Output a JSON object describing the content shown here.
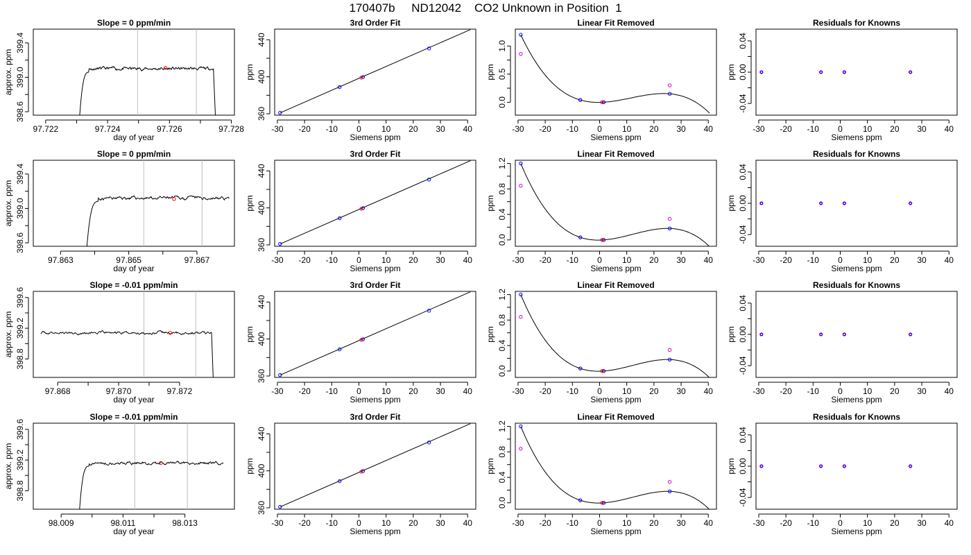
{
  "title": "170407b     ND12042    CO2 Unknown in Position  1",
  "colors": {
    "trace": "#000000",
    "marker_red": "#ff0000",
    "known_blue": "#0000ff",
    "unknown_magenta": "#cc00cc",
    "refline": "#bebebe",
    "axis": "#000000"
  },
  "chart_data": [
    {
      "type": "line",
      "title": "Slope =  0  ppm/min",
      "xlabel": "day of year",
      "ylabel": "approx. ppm",
      "xlim": [
        97.7216,
        97.7281
      ],
      "ylim": [
        398.56,
        399.56
      ],
      "x_ticks": [
        "97.722",
        "97.724",
        "97.726",
        "97.728"
      ],
      "x_tick_values": [
        97.722,
        97.724,
        97.726,
        97.728
      ],
      "y_ticks": [
        "398.6",
        "399.0",
        "399.4"
      ],
      "y_tick_values": [
        398.6,
        399.0,
        399.4
      ],
      "trace": {
        "start": 97.72305,
        "plateau_start": 97.7234,
        "end": 97.72742,
        "drop_end": 97.72752,
        "level": 399.1,
        "ripple": 0.025,
        "seed": 11
      },
      "vlines": [
        97.72497,
        97.72687
      ],
      "marker": {
        "x": 97.72587,
        "y": 399.11
      }
    },
    {
      "type": "scatter",
      "title": "3rd Order Fit",
      "xlabel": "Siemens ppm",
      "ylabel": "ppm",
      "xlim": [
        -31,
        43
      ],
      "ylim": [
        358.5,
        451.5
      ],
      "x_ticks": [
        "-30",
        "-20",
        "-10",
        "0",
        "10",
        "20",
        "30",
        "40"
      ],
      "x_tick_values": [
        -30,
        -20,
        -10,
        0,
        10,
        20,
        30,
        40
      ],
      "y_ticks": [
        "360",
        "400",
        "440"
      ],
      "y_tick_values": [
        360,
        400,
        440
      ],
      "fit_line": {
        "x": [
          -29,
          41
        ],
        "y": [
          361,
          451
        ]
      },
      "knowns": {
        "x": [
          -29,
          -7.1,
          1.5,
          25.8
        ],
        "y": [
          361.1,
          388.8,
          399.7,
          430.6
        ]
      },
      "unknown": {
        "x": 0.9,
        "y": 399.1
      }
    },
    {
      "type": "line",
      "title": "Linear Fit Removed",
      "xlabel": "Siemens ppm",
      "ylabel": "ppm",
      "xlim": [
        -31,
        43
      ],
      "ylim": [
        -0.23,
        1.3
      ],
      "x_ticks": [
        "-30",
        "-20",
        "-10",
        "0",
        "10",
        "20",
        "30",
        "40"
      ],
      "x_tick_values": [
        -30,
        -20,
        -10,
        0,
        10,
        20,
        30,
        40
      ],
      "y_ticks": [
        "0.0",
        "0.5",
        "1.0"
      ],
      "y_tick_values": [
        0,
        0.5,
        1.0
      ],
      "curve_points": [
        [
          -29,
          1.2
        ],
        [
          -7.1,
          0.04
        ],
        [
          1.5,
          0.0
        ],
        [
          25.8,
          0.15
        ]
      ],
      "curve_range": [
        -29,
        40.5
      ],
      "knowns": {
        "x": [
          -29,
          -7.1,
          1.5,
          25.8
        ],
        "y": [
          1.2,
          0.04,
          0.0,
          0.15
        ]
      },
      "uncorrected": {
        "x": [
          -29,
          -7.1,
          1.5,
          25.8
        ],
        "y": [
          0.86,
          0.04,
          0.0,
          0.3
        ]
      },
      "unknown": {
        "x": 0.9,
        "y": 0.0
      }
    },
    {
      "type": "scatter",
      "title": "Residuals for Knowns",
      "xlabel": "Siemens ppm",
      "ylabel": "ppm",
      "xlim": [
        -31,
        43
      ],
      "ylim": [
        -0.055,
        0.055
      ],
      "x_ticks": [
        "-30",
        "-20",
        "-10",
        "0",
        "10",
        "20",
        "30",
        "40"
      ],
      "x_tick_values": [
        -30,
        -20,
        -10,
        0,
        10,
        20,
        30,
        40
      ],
      "y_ticks": [
        "-0.04",
        "0.00",
        "0.04"
      ],
      "y_tick_values": [
        -0.04,
        0,
        0.04
      ],
      "points": {
        "x": [
          -29,
          -7.1,
          1.5,
          25.8
        ],
        "y": [
          0,
          0,
          0,
          0
        ]
      }
    },
    {
      "type": "line",
      "title": "Slope =  0  ppm/min",
      "xlabel": "day of year",
      "ylabel": "approx. ppm",
      "xlim": [
        97.8622,
        97.8681
      ],
      "ylim": [
        398.56,
        399.56
      ],
      "x_ticks": [
        "97.863",
        "97.865",
        "97.867"
      ],
      "x_tick_values": [
        97.863,
        97.865,
        97.867
      ],
      "y_ticks": [
        "398.6",
        "399.0",
        "399.4"
      ],
      "y_tick_values": [
        398.6,
        399.0,
        399.4
      ],
      "trace": {
        "start": 97.86372,
        "plateau_start": 97.8641,
        "end": 97.86795,
        "drop_end": null,
        "level": 399.12,
        "ripple": 0.025,
        "seed": 23
      },
      "vlines": [
        97.86544,
        97.86715
      ],
      "marker": {
        "x": 97.86633,
        "y": 399.11
      }
    },
    {
      "type": "scatter",
      "title": "3rd Order Fit",
      "xlabel": "Siemens ppm",
      "ylabel": "ppm",
      "xlim": [
        -31,
        43
      ],
      "ylim": [
        358.5,
        451.5
      ],
      "x_ticks": [
        "-30",
        "-20",
        "-10",
        "0",
        "10",
        "20",
        "30",
        "40"
      ],
      "x_tick_values": [
        -30,
        -20,
        -10,
        0,
        10,
        20,
        30,
        40
      ],
      "y_ticks": [
        "360",
        "400",
        "440"
      ],
      "y_tick_values": [
        360,
        400,
        440
      ],
      "fit_line": {
        "x": [
          -29,
          41
        ],
        "y": [
          361,
          451
        ]
      },
      "knowns": {
        "x": [
          -29,
          -7.1,
          1.5,
          25.8
        ],
        "y": [
          361.1,
          388.8,
          399.7,
          430.6
        ]
      },
      "unknown": {
        "x": 0.9,
        "y": 399.1
      }
    },
    {
      "type": "line",
      "title": "Linear Fit Removed",
      "xlabel": "Siemens ppm",
      "ylabel": "ppm",
      "xlim": [
        -31,
        43
      ],
      "ylim": [
        -0.1,
        1.25
      ],
      "x_ticks": [
        "-30",
        "-20",
        "-10",
        "0",
        "10",
        "20",
        "30",
        "40"
      ],
      "x_tick_values": [
        -30,
        -20,
        -10,
        0,
        10,
        20,
        30,
        40
      ],
      "y_ticks": [
        "0.0",
        "0.4",
        "0.8",
        "1.2"
      ],
      "y_tick_values": [
        0,
        0.4,
        0.8,
        1.2
      ],
      "curve_points": [
        [
          -29,
          1.2
        ],
        [
          -7.1,
          0.04
        ],
        [
          1.5,
          0.0
        ],
        [
          25.8,
          0.18
        ]
      ],
      "curve_range": [
        -29,
        40.5
      ],
      "knowns": {
        "x": [
          -29,
          -7.1,
          1.5,
          25.8
        ],
        "y": [
          1.2,
          0.04,
          0.0,
          0.18
        ]
      },
      "uncorrected": {
        "x": [
          -29,
          -7.1,
          1.5,
          25.8
        ],
        "y": [
          0.85,
          0.04,
          0.0,
          0.33
        ]
      },
      "unknown": {
        "x": 0.9,
        "y": 0.0
      }
    },
    {
      "type": "scatter",
      "title": "Residuals for Knowns",
      "xlabel": "Siemens ppm",
      "ylabel": "ppm",
      "xlim": [
        -31,
        43
      ],
      "ylim": [
        -0.055,
        0.055
      ],
      "x_ticks": [
        "-30",
        "-20",
        "-10",
        "0",
        "10",
        "20",
        "30",
        "40"
      ],
      "x_tick_values": [
        -30,
        -20,
        -10,
        0,
        10,
        20,
        30,
        40
      ],
      "y_ticks": [
        "-0.04",
        "0.00",
        "0.04"
      ],
      "y_tick_values": [
        -0.04,
        0,
        0.04
      ],
      "points": {
        "x": [
          -29,
          -7.1,
          1.5,
          25.8
        ],
        "y": [
          0,
          0,
          0,
          0
        ]
      }
    },
    {
      "type": "line",
      "title": "Slope =  -0.01  ppm/min",
      "xlabel": "day of year",
      "ylabel": "approx. ppm",
      "xlim": [
        97.8672,
        97.8738
      ],
      "ylim": [
        398.56,
        399.68
      ],
      "x_ticks": [
        "97.868",
        "97.870",
        "97.872"
      ],
      "x_tick_values": [
        97.868,
        97.87,
        97.872
      ],
      "y_ticks": [
        "398.8",
        "399.2",
        "399.6"
      ],
      "y_tick_values": [
        398.8,
        399.2,
        399.6
      ],
      "trace": {
        "start": 97.86745,
        "plateau_start": 97.86745,
        "end": 97.87305,
        "drop_end": 97.87313,
        "level": 399.14,
        "ripple": 0.025,
        "seed": 37
      },
      "vlines": [
        97.87083,
        97.87253
      ],
      "marker": {
        "x": 97.87169,
        "y": 399.14
      }
    },
    {
      "type": "scatter",
      "title": "3rd Order Fit",
      "xlabel": "Siemens ppm",
      "ylabel": "ppm",
      "xlim": [
        -31,
        43
      ],
      "ylim": [
        358.5,
        451.5
      ],
      "x_ticks": [
        "-30",
        "-20",
        "-10",
        "0",
        "10",
        "20",
        "30",
        "40"
      ],
      "x_tick_values": [
        -30,
        -20,
        -10,
        0,
        10,
        20,
        30,
        40
      ],
      "y_ticks": [
        "360",
        "400",
        "440"
      ],
      "y_tick_values": [
        360,
        400,
        440
      ],
      "fit_line": {
        "x": [
          -29,
          41
        ],
        "y": [
          361,
          451
        ]
      },
      "knowns": {
        "x": [
          -29,
          -7.1,
          1.5,
          25.8
        ],
        "y": [
          361.1,
          388.8,
          399.7,
          430.6
        ]
      },
      "unknown": {
        "x": 0.9,
        "y": 399.1
      }
    },
    {
      "type": "line",
      "title": "Linear Fit Removed",
      "xlabel": "Siemens ppm",
      "ylabel": "ppm",
      "xlim": [
        -31,
        43
      ],
      "ylim": [
        -0.1,
        1.25
      ],
      "x_ticks": [
        "-30",
        "-20",
        "-10",
        "0",
        "10",
        "20",
        "30",
        "40"
      ],
      "x_tick_values": [
        -30,
        -20,
        -10,
        0,
        10,
        20,
        30,
        40
      ],
      "y_ticks": [
        "0.0",
        "0.4",
        "0.8",
        "1.2"
      ],
      "y_tick_values": [
        0,
        0.4,
        0.8,
        1.2
      ],
      "curve_points": [
        [
          -29,
          1.2
        ],
        [
          -7.1,
          0.04
        ],
        [
          1.5,
          0.0
        ],
        [
          25.8,
          0.18
        ]
      ],
      "curve_range": [
        -29,
        40.5
      ],
      "knowns": {
        "x": [
          -29,
          -7.1,
          1.5,
          25.8
        ],
        "y": [
          1.2,
          0.04,
          0.0,
          0.18
        ]
      },
      "uncorrected": {
        "x": [
          -29,
          -7.1,
          1.5,
          25.8
        ],
        "y": [
          0.85,
          0.04,
          0.0,
          0.33
        ]
      },
      "unknown": {
        "x": 0.9,
        "y": 0.0
      }
    },
    {
      "type": "scatter",
      "title": "Residuals for Knowns",
      "xlabel": "Siemens ppm",
      "ylabel": "ppm",
      "xlim": [
        -31,
        43
      ],
      "ylim": [
        -0.055,
        0.055
      ],
      "x_ticks": [
        "-30",
        "-20",
        "-10",
        "0",
        "10",
        "20",
        "30",
        "40"
      ],
      "x_tick_values": [
        -30,
        -20,
        -10,
        0,
        10,
        20,
        30,
        40
      ],
      "y_ticks": [
        "-0.04",
        "0.00",
        "0.04"
      ],
      "y_tick_values": [
        -0.04,
        0,
        0.04
      ],
      "points": {
        "x": [
          -29,
          -7.1,
          1.5,
          25.8
        ],
        "y": [
          0,
          0,
          0,
          0
        ]
      }
    },
    {
      "type": "line",
      "title": "Slope =  -0.01  ppm/min",
      "xlabel": "day of year",
      "ylabel": "approx. ppm",
      "xlim": [
        98.0081,
        98.0146
      ],
      "ylim": [
        398.56,
        399.68
      ],
      "x_ticks": [
        "98.009",
        "98.011",
        "98.013"
      ],
      "x_tick_values": [
        98.009,
        98.011,
        98.013
      ],
      "y_ticks": [
        "398.8",
        "399.2",
        "399.6"
      ],
      "y_tick_values": [
        398.8,
        399.2,
        399.6
      ],
      "trace": {
        "start": 98.00955,
        "plateau_start": 98.0099,
        "end": 98.01424,
        "drop_end": null,
        "level": 399.16,
        "ripple": 0.025,
        "seed": 51
      },
      "vlines": [
        98.01138,
        98.01308
      ],
      "marker": {
        "x": 98.01222,
        "y": 399.16
      }
    },
    {
      "type": "scatter",
      "title": "3rd Order Fit",
      "xlabel": "Siemens ppm",
      "ylabel": "ppm",
      "xlim": [
        -31,
        43
      ],
      "ylim": [
        358.5,
        451.5
      ],
      "x_ticks": [
        "-30",
        "-20",
        "-10",
        "0",
        "10",
        "20",
        "30",
        "40"
      ],
      "x_tick_values": [
        -30,
        -20,
        -10,
        0,
        10,
        20,
        30,
        40
      ],
      "y_ticks": [
        "360",
        "400",
        "440"
      ],
      "y_tick_values": [
        360,
        400,
        440
      ],
      "fit_line": {
        "x": [
          -29,
          41
        ],
        "y": [
          361,
          451
        ]
      },
      "knowns": {
        "x": [
          -29,
          -7.1,
          1.5,
          25.8
        ],
        "y": [
          361.1,
          388.8,
          399.7,
          430.6
        ]
      },
      "unknown": {
        "x": 0.9,
        "y": 399.1
      }
    },
    {
      "type": "line",
      "title": "Linear Fit Removed",
      "xlabel": "Siemens ppm",
      "ylabel": "ppm",
      "xlim": [
        -31,
        43
      ],
      "ylim": [
        -0.1,
        1.25
      ],
      "x_ticks": [
        "-30",
        "-20",
        "-10",
        "0",
        "10",
        "20",
        "30",
        "40"
      ],
      "x_tick_values": [
        -30,
        -20,
        -10,
        0,
        10,
        20,
        30,
        40
      ],
      "y_ticks": [
        "0.0",
        "0.4",
        "0.8",
        "1.2"
      ],
      "y_tick_values": [
        0,
        0.4,
        0.8,
        1.2
      ],
      "curve_points": [
        [
          -29,
          1.2
        ],
        [
          -7.1,
          0.04
        ],
        [
          1.5,
          0.0
        ],
        [
          25.8,
          0.18
        ]
      ],
      "curve_range": [
        -29,
        40.5
      ],
      "knowns": {
        "x": [
          -29,
          -7.1,
          1.5,
          25.8
        ],
        "y": [
          1.2,
          0.04,
          0.0,
          0.18
        ]
      },
      "uncorrected": {
        "x": [
          -29,
          -7.1,
          1.5,
          25.8
        ],
        "y": [
          0.85,
          0.04,
          0.0,
          0.33
        ]
      },
      "unknown": {
        "x": 0.9,
        "y": 0.0
      }
    },
    {
      "type": "scatter",
      "title": "Residuals for Knowns",
      "xlabel": "Siemens ppm",
      "ylabel": "ppm",
      "xlim": [
        -31,
        43
      ],
      "ylim": [
        -0.055,
        0.055
      ],
      "x_ticks": [
        "-30",
        "-20",
        "-10",
        "0",
        "10",
        "20",
        "30",
        "40"
      ],
      "x_tick_values": [
        -30,
        -20,
        -10,
        0,
        10,
        20,
        30,
        40
      ],
      "y_ticks": [
        "-0.04",
        "0.00",
        "0.04"
      ],
      "y_tick_values": [
        -0.04,
        0,
        0.04
      ],
      "points": {
        "x": [
          -29,
          -7.1,
          1.5,
          25.8
        ],
        "y": [
          0,
          0,
          0,
          0
        ]
      }
    }
  ]
}
